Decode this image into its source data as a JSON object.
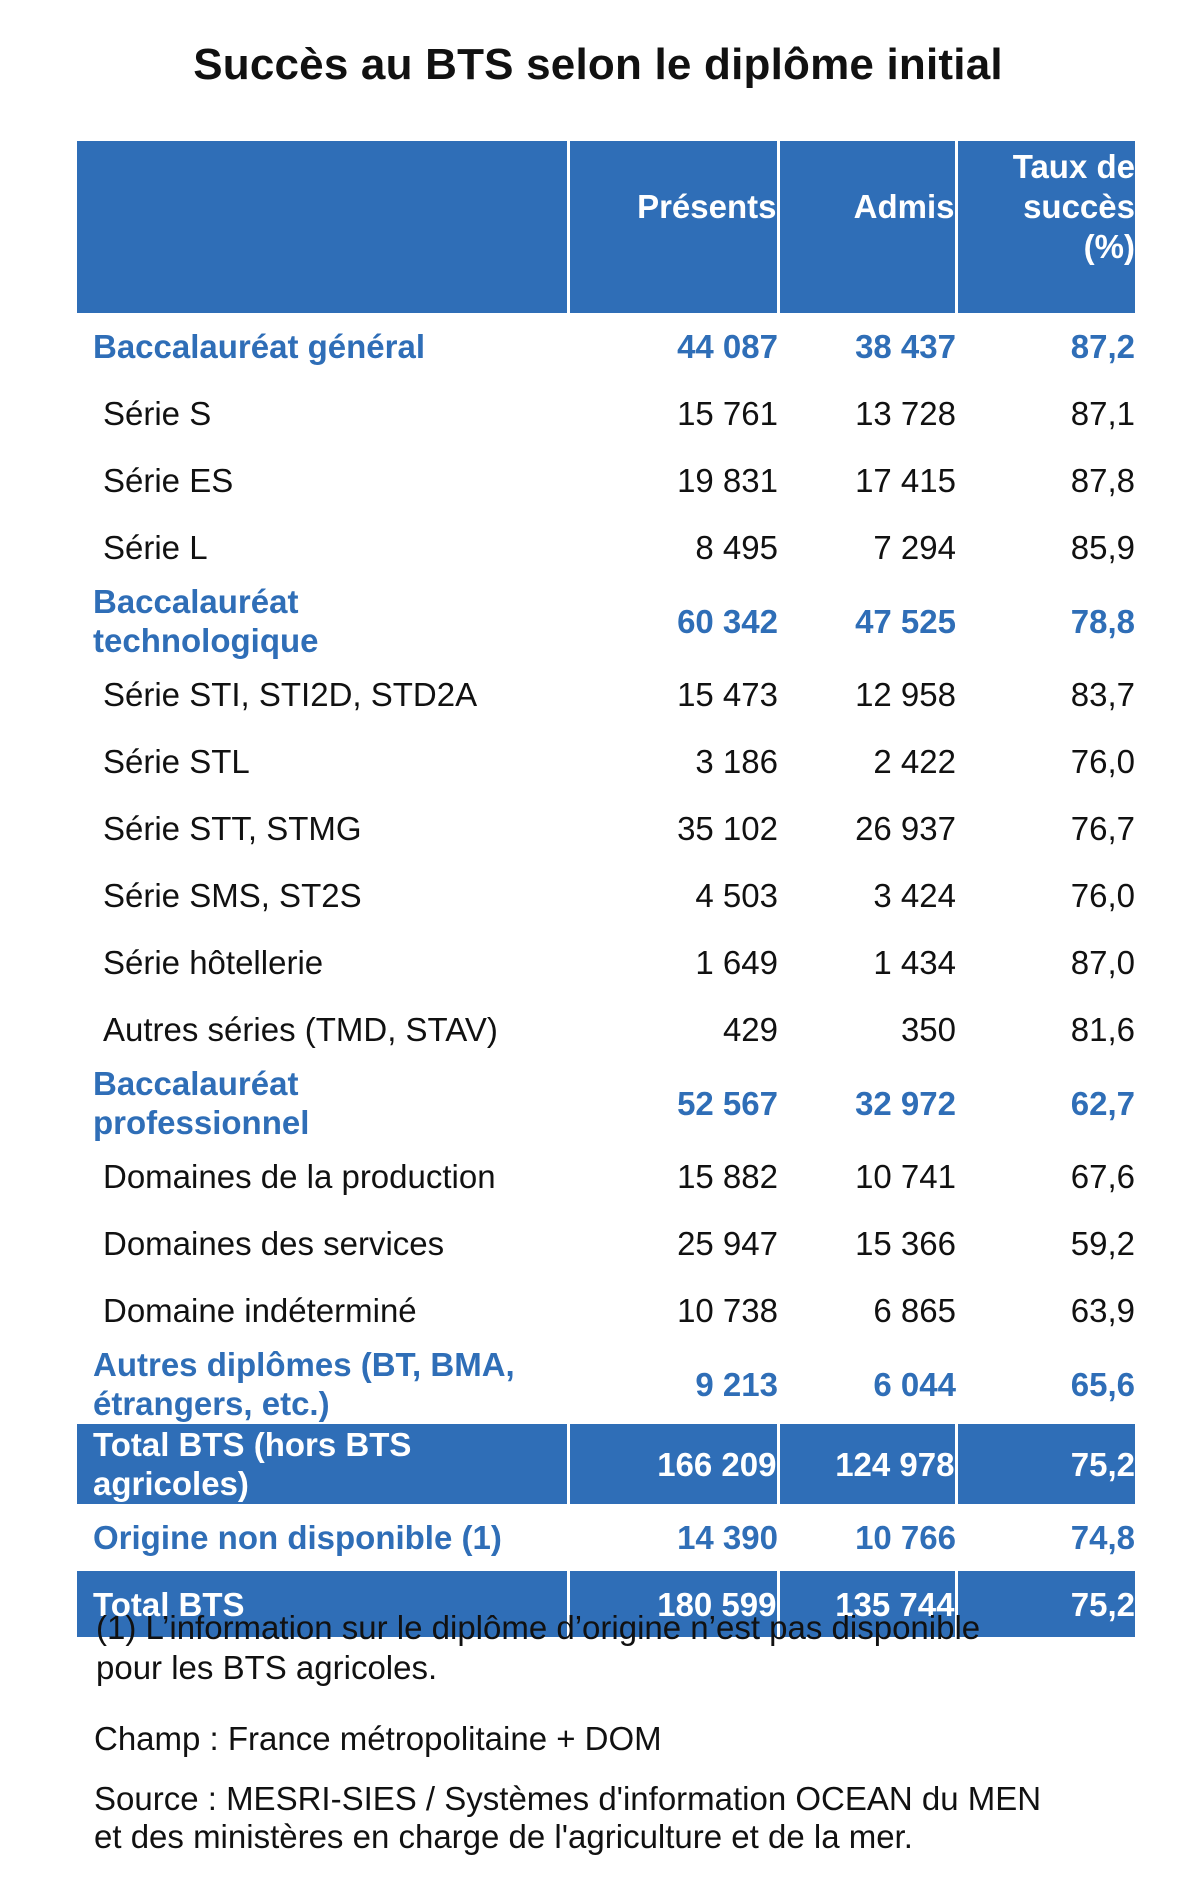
{
  "title": "Succès au BTS selon le diplôme initial",
  "header": {
    "presents": "Présents",
    "admis": "Admis",
    "taux_line1": "Taux de",
    "taux_line2": "succès",
    "taux_line3": "(%)"
  },
  "rows": [
    {
      "label": "Baccalauréat général",
      "presents": "44 087",
      "admis": "38 437",
      "taux": "87,2"
    },
    {
      "label": "Série S",
      "presents": "15 761",
      "admis": "13 728",
      "taux": "87,1"
    },
    {
      "label": "Série ES",
      "presents": "19 831",
      "admis": "17 415",
      "taux": "87,8"
    },
    {
      "label": "Série L",
      "presents": "8 495",
      "admis": "7 294",
      "taux": "85,9"
    },
    {
      "label_line1": "Baccalauréat",
      "label_line2": "technologique",
      "presents": "60 342",
      "admis": "47 525",
      "taux": "78,8"
    },
    {
      "label": "Série STI, STI2D, STD2A",
      "presents": "15 473",
      "admis": "12 958",
      "taux": "83,7"
    },
    {
      "label": "Série STL",
      "presents": "3 186",
      "admis": "2 422",
      "taux": "76,0"
    },
    {
      "label": "Série STT, STMG",
      "presents": "35 102",
      "admis": "26 937",
      "taux": "76,7"
    },
    {
      "label": "Série SMS, ST2S",
      "presents": "4 503",
      "admis": "3 424",
      "taux": "76,0"
    },
    {
      "label": "Série hôtellerie",
      "presents": "1 649",
      "admis": "1 434",
      "taux": "87,0"
    },
    {
      "label": "Autres séries (TMD, STAV)",
      "presents": "429",
      "admis": "350",
      "taux": "81,6"
    },
    {
      "label_line1": "Baccalauréat",
      "label_line2": "professionnel",
      "presents": "52 567",
      "admis": "32 972",
      "taux": "62,7"
    },
    {
      "label": "Domaines de la production",
      "presents": "15 882",
      "admis": "10 741",
      "taux": "67,6"
    },
    {
      "label": "Domaines des services",
      "presents": "25 947",
      "admis": "15 366",
      "taux": "59,2"
    },
    {
      "label": "Domaine indéterminé",
      "presents": "10 738",
      "admis": "6 865",
      "taux": "63,9"
    },
    {
      "label_line1": "Autres diplômes (BT, BMA,",
      "label_line2": "étrangers, etc.)",
      "presents": "9 213",
      "admis": "6 044",
      "taux": "65,6"
    },
    {
      "label_line1": "Total BTS (hors BTS",
      "label_line2": "agricoles)",
      "presents": "166 209",
      "admis": "124 978",
      "taux": "75,2"
    },
    {
      "label": "Origine non disponible (1)",
      "presents": "14 390",
      "admis": "10 766",
      "taux": "74,8"
    },
    {
      "label": "Total BTS",
      "presents": "180 599",
      "admis": "135 744",
      "taux": "75,2"
    }
  ],
  "footnote_line1": "(1) L’information sur le diplôme d’origine n’est pas disponible",
  "footnote_line2": "pour les BTS agricoles.",
  "champ": "Champ : France métropolitaine + DOM",
  "source_line1": "Source : MESRI-SIES / Systèmes d'information OCEAN du MEN",
  "source_line2": "et des ministères en charge de l'agriculture et de la mer.",
  "colors": {
    "accent": "#2f6eb7",
    "text": "#111111",
    "background": "#ffffff"
  }
}
